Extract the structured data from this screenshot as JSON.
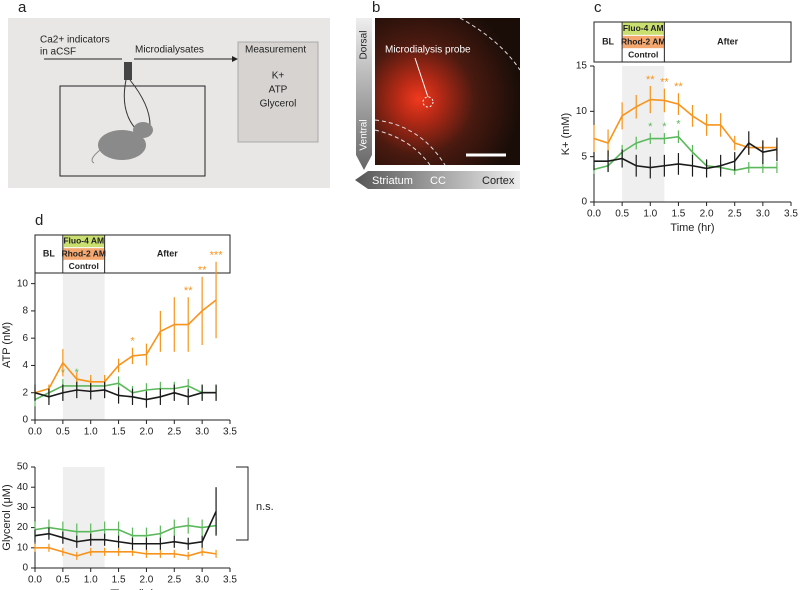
{
  "panel_a": {
    "label": "a",
    "input_line1": "Ca2+ indicators",
    "input_line2": "in aCSF",
    "flow": "Microdialysates",
    "box_title": "Measurement",
    "items": [
      "K+",
      "ATP",
      "Glycerol"
    ]
  },
  "panel_b": {
    "label": "b",
    "dorsal": "Dorsal",
    "ventral": "Ventral",
    "probe": "Microdialysis probe",
    "regions": [
      "Striatum",
      "CC",
      "Cortex"
    ]
  },
  "chart_data": [
    {
      "type": "line",
      "panel_label": "c",
      "x_label": "Time (hr)",
      "y_label": "K+ (mM)",
      "phases": [
        "BL",
        null,
        "After"
      ],
      "phase_edges": [
        0,
        0.5,
        1.25,
        3.5
      ],
      "shade": [
        0.5,
        1.25
      ],
      "xlim": [
        0,
        3.5
      ],
      "xticks": [
        {
          "value": 0,
          "label": "0.0"
        },
        0.5,
        {
          "value": 1,
          "label": "1.0"
        },
        1.5,
        {
          "value": 2,
          "label": "2.0"
        },
        2.5,
        {
          "value": 3,
          "label": "3.0"
        },
        3.5
      ],
      "ylim": [
        0,
        15
      ],
      "yticks": [
        0,
        5,
        10,
        15
      ],
      "x": [
        0,
        0.25,
        0.5,
        0.75,
        1,
        1.25,
        1.5,
        1.75,
        2,
        2.25,
        2.5,
        2.75,
        3,
        3.25
      ],
      "series": [
        {
          "name": "Fluo-4 AM",
          "color": "#5cb85c",
          "label_color": "#c9df6f",
          "values": [
            3.6,
            4.0,
            5.5,
            6.5,
            7.0,
            7.0,
            7.2,
            5.5,
            4.0,
            3.8,
            3.5,
            3.8,
            3.8,
            3.8
          ],
          "errors": [
            0.5,
            0.6,
            0.8,
            0.7,
            0.6,
            0.6,
            0.7,
            0.8,
            0.6,
            0.5,
            0.5,
            0.6,
            0.6,
            0.6
          ],
          "significance": [
            null,
            null,
            null,
            null,
            "*",
            "*",
            "*",
            null,
            null,
            null,
            null,
            null,
            null,
            null
          ]
        },
        {
          "name": "Rhod-2 AM",
          "color": "#f7941d",
          "label_color": "#f4a870",
          "values": [
            7.0,
            6.5,
            9.5,
            10.5,
            11.3,
            11.2,
            10.8,
            9.5,
            8.5,
            8.5,
            6.5,
            6.0,
            6.0,
            6.0
          ],
          "errors": [
            1.5,
            1.5,
            1.5,
            1.3,
            1.5,
            1.3,
            1.2,
            1.2,
            1.2,
            1.3,
            0.8,
            0.8,
            0.8,
            0.8
          ],
          "significance": [
            null,
            null,
            null,
            null,
            "**",
            "**",
            "**",
            null,
            null,
            null,
            null,
            null,
            null,
            null
          ]
        },
        {
          "name": "Control",
          "color": "#1a1a1a",
          "label_color": "#ffffff",
          "values": [
            4.5,
            4.5,
            4.8,
            4.0,
            3.8,
            4.0,
            4.2,
            4.0,
            3.7,
            4.0,
            4.5,
            6.5,
            5.5,
            5.8
          ],
          "errors": [
            1.0,
            1.2,
            1.0,
            1.2,
            1.2,
            1.2,
            1.2,
            1.2,
            1.0,
            1.2,
            1.0,
            1.3,
            1.3,
            1.3
          ]
        }
      ]
    },
    {
      "type": "line",
      "panel_label": "d",
      "y_label": "ATP (nM)",
      "phases": [
        "BL",
        null,
        "After"
      ],
      "phase_edges": [
        0,
        0.5,
        1.25,
        3.5
      ],
      "shade": [
        0.5,
        1.25
      ],
      "xlim": [
        0,
        3.5
      ],
      "xticks": [
        {
          "value": 0,
          "label": "0.0"
        },
        0.5,
        {
          "value": 1,
          "label": "1.0"
        },
        1.5,
        {
          "value": 2,
          "label": "2.0"
        },
        2.5,
        {
          "value": 3,
          "label": "3.0"
        },
        3.5
      ],
      "ylim": [
        0,
        11
      ],
      "yticks": [
        0,
        2,
        4,
        6,
        8,
        10
      ],
      "x": [
        0,
        0.25,
        0.5,
        0.75,
        1,
        1.25,
        1.5,
        1.75,
        2,
        2.25,
        2.5,
        2.75,
        3,
        3.25
      ],
      "series": [
        {
          "name": "Fluo-4 AM",
          "color": "#5cb85c",
          "label_color": "#c9df6f",
          "values": [
            1.5,
            2.0,
            2.5,
            2.5,
            2.5,
            2.5,
            2.7,
            2.0,
            2.2,
            2.3,
            2.3,
            2.5,
            2.0,
            2.0
          ],
          "errors": [
            0.5,
            0.5,
            0.5,
            0.5,
            0.5,
            0.5,
            0.5,
            0.5,
            0.5,
            0.5,
            0.5,
            0.5,
            0.5,
            0.5
          ],
          "significance": [
            null,
            null,
            "*",
            "*",
            null,
            null,
            null,
            null,
            null,
            null,
            null,
            null,
            null,
            null
          ]
        },
        {
          "name": "Rhod-2 AM",
          "color": "#f7941d",
          "label_color": "#f4a870",
          "values": [
            2.0,
            2.3,
            4.2,
            3.0,
            2.8,
            2.8,
            4.0,
            4.7,
            4.8,
            6.5,
            7.0,
            7.0,
            8.0,
            8.8
          ],
          "errors": [
            0.3,
            0.3,
            1.0,
            0.5,
            0.5,
            0.5,
            0.5,
            0.6,
            0.8,
            1.5,
            2.0,
            2.0,
            2.5,
            2.8
          ],
          "significance": [
            null,
            null,
            null,
            null,
            null,
            null,
            null,
            "*",
            null,
            null,
            null,
            "**",
            "**",
            "***"
          ]
        },
        {
          "name": "Control",
          "color": "#1a1a1a",
          "label_color": "#ffffff",
          "values": [
            2.0,
            1.7,
            2.0,
            2.2,
            2.1,
            2.2,
            1.8,
            1.7,
            1.5,
            1.7,
            2.0,
            1.7,
            2.0,
            2.0
          ],
          "errors": [
            0.6,
            0.6,
            0.6,
            0.6,
            0.6,
            0.6,
            0.6,
            0.6,
            0.6,
            0.6,
            0.6,
            0.6,
            0.6,
            0.6
          ]
        }
      ]
    },
    {
      "type": "line",
      "x_label": "Time (hr)",
      "y_label": "Glycerol (μM)",
      "bracket_label": "n.s.",
      "shade": [
        0.5,
        1.25
      ],
      "xlim": [
        0,
        3.5
      ],
      "xticks": [
        {
          "value": 0,
          "label": "0.0"
        },
        0.5,
        {
          "value": 1,
          "label": "1.0"
        },
        1.5,
        {
          "value": 2,
          "label": "2.0"
        },
        2.5,
        {
          "value": 3,
          "label": "3.0"
        },
        3.5
      ],
      "ylim": [
        0,
        50
      ],
      "yticks": [
        0,
        10,
        20,
        30,
        40,
        50
      ],
      "x": [
        0,
        0.25,
        0.5,
        0.75,
        1,
        1.25,
        1.5,
        1.75,
        2,
        2.25,
        2.5,
        2.75,
        3,
        3.25
      ],
      "series": [
        {
          "color": "#5cb85c",
          "values": [
            19,
            20,
            19,
            18,
            18,
            19,
            19,
            16,
            16,
            17,
            20,
            21,
            20,
            21
          ],
          "errors": [
            4,
            4,
            4,
            4,
            4,
            4,
            4,
            4,
            4,
            4,
            4,
            4,
            4,
            4
          ]
        },
        {
          "color": "#f7941d",
          "values": [
            10,
            10,
            8,
            6,
            8,
            8,
            8,
            8,
            7,
            7,
            7,
            6,
            8,
            7
          ],
          "errors": [
            2,
            2,
            2,
            2,
            2,
            2,
            2,
            2,
            2,
            2,
            2,
            2,
            2,
            2
          ]
        },
        {
          "color": "#1a1a1a",
          "values": [
            16,
            17,
            15,
            13,
            14,
            14,
            13,
            12,
            12,
            12,
            13,
            12,
            13,
            28
          ],
          "errors": [
            3,
            3,
            3,
            3,
            3,
            3,
            3,
            3,
            3,
            3,
            3,
            3,
            3,
            12
          ]
        }
      ]
    }
  ]
}
